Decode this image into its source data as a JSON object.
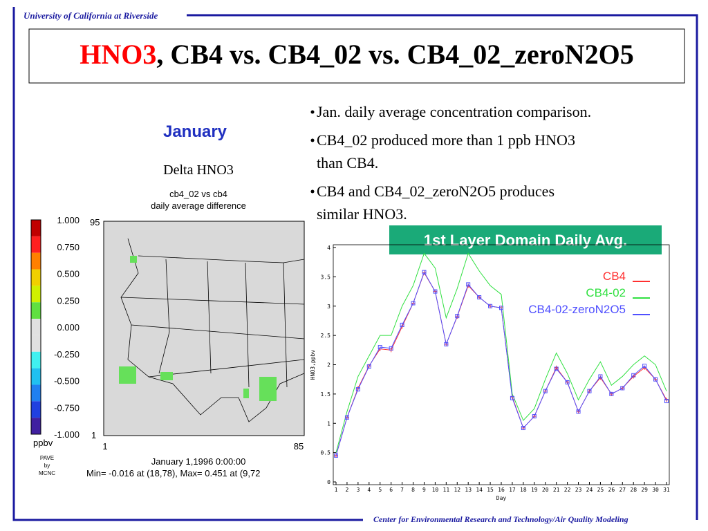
{
  "header": {
    "institution": "University of California at Riverside",
    "title_highlight": "HNO3",
    "title_rest": ", CB4 vs. CB4_02 vs. CB4_02_zeroN2O5"
  },
  "footer": "Center for Environmental Research and Technology/Air Quality Modeling",
  "map": {
    "month": "January",
    "title": "Delta HNO3",
    "subtitle": [
      "cb4_02 vs cb4",
      "daily average difference"
    ],
    "colorbar_labels": [
      "1.000",
      "0.750",
      "0.500",
      "0.250",
      "0.000",
      "-0.250",
      "-0.500",
      "-0.750",
      "-1.000"
    ],
    "colorbar_colors": [
      "#c00000",
      "#ff2020",
      "#ff8000",
      "#f0d000",
      "#d0f000",
      "#60e040",
      "#e0e0e0",
      "#e0e0e0",
      "#40f0f0",
      "#20c0f0",
      "#2080f0",
      "#2040e0",
      "#4020a0"
    ],
    "unit": "ppbv",
    "credit": [
      "PAVE",
      "by",
      "MCNC"
    ],
    "y_axis": [
      "95",
      "1"
    ],
    "x_axis": [
      "1",
      "85"
    ],
    "time": "January 1,1996 0:00:00",
    "stats": "Min=  -0.016 at (18,78), Max=   0.451 at (9,72"
  },
  "bullets": [
    [
      "Jan. daily average concentration comparison."
    ],
    [
      "CB4_02 produced more than 1 ppb HNO3",
      "than CB4."
    ],
    [
      "CB4 and CB4_02_zeroN2O5 produces",
      "similar HNO3."
    ]
  ],
  "chart_data": {
    "type": "line",
    "title": "1st Layer Domain Daily Avg.",
    "x_label": "Day",
    "y_label": "HNO3,ppbv",
    "x": [
      1,
      2,
      3,
      4,
      5,
      6,
      7,
      8,
      9,
      10,
      11,
      12,
      13,
      14,
      15,
      16,
      17,
      18,
      19,
      20,
      21,
      22,
      23,
      24,
      25,
      26,
      27,
      28,
      29,
      30,
      31
    ],
    "xlim": [
      1,
      31
    ],
    "xticks": [
      1,
      2,
      3,
      4,
      5,
      6,
      7,
      8,
      9,
      10,
      11,
      12,
      13,
      14,
      15,
      16,
      17,
      18,
      19,
      20,
      21,
      22,
      23,
      24,
      25,
      26,
      27,
      28,
      29,
      30,
      31
    ],
    "ylim": [
      0,
      4
    ],
    "yticks": [
      0,
      0.5,
      1,
      1.5,
      2,
      2.5,
      3,
      3.5,
      4
    ],
    "legend": "upper right",
    "series": [
      {
        "name": "CB4",
        "color": "#ff3030",
        "marker": "plus",
        "values": [
          0.45,
          1.1,
          1.6,
          1.98,
          2.27,
          2.25,
          2.65,
          3.05,
          3.57,
          3.25,
          2.35,
          2.82,
          3.35,
          3.15,
          3.0,
          2.97,
          1.45,
          0.92,
          1.12,
          1.55,
          1.95,
          1.7,
          1.2,
          1.55,
          1.78,
          1.5,
          1.6,
          1.8,
          1.95,
          1.75,
          1.4
        ]
      },
      {
        "name": "CB4-02",
        "color": "#30e040",
        "marker": "none",
        "values": [
          0.5,
          1.2,
          1.8,
          2.15,
          2.5,
          2.5,
          3.0,
          3.35,
          3.9,
          3.65,
          2.8,
          3.3,
          3.9,
          3.6,
          3.35,
          3.2,
          1.5,
          1.05,
          1.25,
          1.75,
          2.2,
          1.85,
          1.4,
          1.75,
          2.05,
          1.65,
          1.8,
          2.0,
          2.15,
          2.0,
          1.55
        ]
      },
      {
        "name": "CB4-02-zeroN2O5",
        "color": "#5050ff",
        "marker": "square",
        "values": [
          0.45,
          1.1,
          1.58,
          1.97,
          2.3,
          2.28,
          2.68,
          3.05,
          3.58,
          3.25,
          2.35,
          2.83,
          3.37,
          3.15,
          3.0,
          2.97,
          1.43,
          0.92,
          1.12,
          1.55,
          1.93,
          1.7,
          1.2,
          1.55,
          1.8,
          1.5,
          1.6,
          1.82,
          1.98,
          1.75,
          1.38
        ]
      }
    ]
  }
}
